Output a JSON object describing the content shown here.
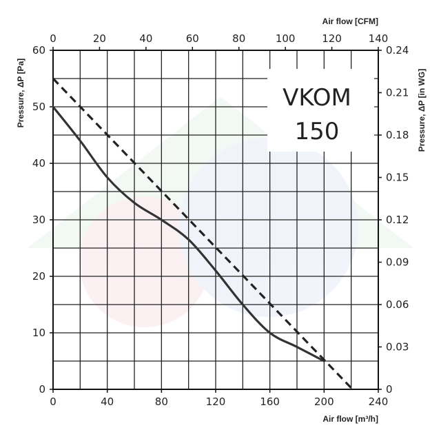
{
  "chart_data": {
    "type": "line",
    "bottom_axis": {
      "label": "Air flow [m³/h]",
      "ticks": [
        "0",
        "40",
        "80",
        "120",
        "160",
        "200",
        "240"
      ],
      "range": [
        0,
        240
      ]
    },
    "top_axis": {
      "label": "Air flow [CFM]",
      "ticks": [
        "0",
        "20",
        "40",
        "60",
        "80",
        "100",
        "120",
        "140"
      ],
      "range": [
        0,
        140
      ]
    },
    "left_axis": {
      "label": "Pressure, ΔP [Pa]",
      "ticks": [
        "0",
        "10",
        "20",
        "30",
        "40",
        "50",
        "60"
      ],
      "range": [
        0,
        60
      ]
    },
    "right_axis": {
      "label": "Pressure, ΔP [in WG]",
      "ticks": [
        "0",
        "0.03",
        "0.06",
        "0.09",
        "0.12",
        "0.15",
        "0.18",
        "0.21",
        "0.24"
      ],
      "range": [
        0,
        0.24
      ]
    },
    "grid": true,
    "model_label": [
      "VKOM",
      "150"
    ],
    "series": [
      {
        "style": "solid",
        "color": "#333333",
        "x": [
          0,
          20,
          40,
          60,
          80,
          100,
          120,
          140,
          160,
          180,
          200
        ],
        "y": [
          50,
          44,
          37.5,
          33,
          30,
          26.5,
          21,
          15,
          10,
          7.5,
          5
        ]
      },
      {
        "style": "dashed",
        "color": "#222222",
        "x": [
          0,
          221
        ],
        "y": [
          55,
          0
        ]
      }
    ]
  }
}
